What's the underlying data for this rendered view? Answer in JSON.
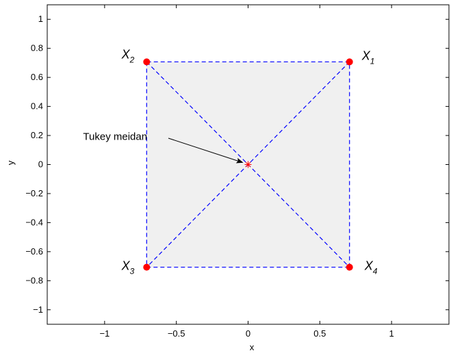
{
  "chart_data": {
    "type": "scatter",
    "title": "",
    "xlabel": "x",
    "ylabel": "y",
    "xlim": [
      -1.4,
      1.4
    ],
    "ylim": [
      -1.1,
      1.1
    ],
    "x_ticks": [
      -1,
      -0.5,
      0,
      0.5,
      1
    ],
    "x_tick_labels": [
      "−1",
      "−0.5",
      "0",
      "0.5",
      "1"
    ],
    "y_ticks": [
      -1,
      -0.8,
      -0.6,
      -0.4,
      -0.2,
      0,
      0.2,
      0.4,
      0.6,
      0.8,
      1
    ],
    "y_tick_labels": [
      "−1",
      "−0.8",
      "−0.6",
      "−0.4",
      "−0.2",
      "0",
      "0.2",
      "0.4",
      "0.6",
      "0.8",
      "1"
    ],
    "grid": false,
    "points": [
      {
        "label": "X",
        "sub": "1",
        "x": 0.707,
        "y": 0.707
      },
      {
        "label": "X",
        "sub": "2",
        "x": -0.707,
        "y": 0.707
      },
      {
        "label": "X",
        "sub": "3",
        "x": -0.707,
        "y": -0.707
      },
      {
        "label": "X",
        "sub": "4",
        "x": 0.707,
        "y": -0.707
      }
    ],
    "median": {
      "x": 0,
      "y": 0
    },
    "annotation": {
      "text": "Tukey meidan",
      "x": -1.15,
      "y": 0.17
    },
    "colors": {
      "points": "#ff0000",
      "lines": "#0000ff",
      "fill": "#f0f0f0",
      "median": "#ff0000"
    }
  }
}
